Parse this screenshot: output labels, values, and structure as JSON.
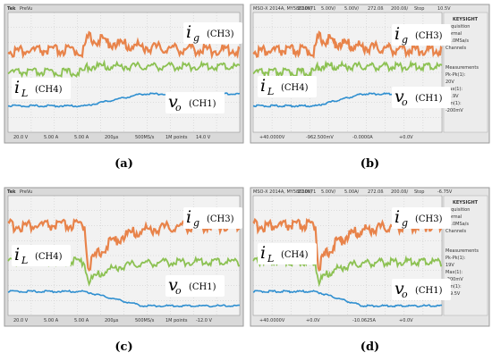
{
  "panels": [
    {
      "label": "(a)",
      "kind": "tek",
      "header": [
        "Tek",
        "PreVu"
      ],
      "footer": [
        "20.0 V",
        "5.00 A",
        "5.00 A",
        "200μs",
        "500MS/s",
        "1M points",
        "14.0 V"
      ],
      "annotations": {
        "ig": {
          "symbol": "i",
          "sub": "g",
          "channel": "(CH3)"
        },
        "iL": {
          "symbol": "i",
          "sub": "L",
          "channel": "(CH4)"
        },
        "vo": {
          "symbol": "v",
          "sub": "o",
          "channel": "(CH1)"
        }
      }
    },
    {
      "label": "(b)",
      "kind": "keysight",
      "header": [
        "MSO-X 2014A, MY58030671",
        "20.0V/",
        "5.00V/",
        "5.00V/",
        "272.0ß",
        "200.0ß/",
        "Stop",
        "10.5V"
      ],
      "sidebar": [
        "KEYSIGHT",
        "Acquisition",
        "Normal",
        "10.0MSa/s",
        "Channels",
        "Measurements",
        "Pk-Pk(1):",
        "20V",
        "Max(1):",
        "19.9V",
        "Min(1):",
        "-200mV"
      ],
      "footer": [
        "+40.0000V",
        "-962.500mV",
        "-0.0000A",
        "+0.0V"
      ],
      "annotations": {
        "ig": {
          "symbol": "i",
          "sub": "g",
          "channel": "(CH3)"
        },
        "iL": {
          "symbol": "i",
          "sub": "L",
          "channel": "(CH4)"
        },
        "vo": {
          "symbol": "v",
          "sub": "o",
          "channel": "(CH1)"
        }
      }
    },
    {
      "label": "(c)",
      "kind": "tek",
      "header": [
        "Tek",
        "PreVu"
      ],
      "footer": [
        "20.0 V",
        "5.00 A",
        "5.00 A",
        "200μs",
        "500MS/s",
        "1M points",
        "-12.0 V"
      ],
      "annotations": {
        "ig": {
          "symbol": "i",
          "sub": "g",
          "channel": "(CH3)"
        },
        "iL": {
          "symbol": "i",
          "sub": "L",
          "channel": "(CH4)"
        },
        "vo": {
          "symbol": "v",
          "sub": "o",
          "channel": "(CH1)"
        }
      }
    },
    {
      "label": "(d)",
      "kind": "keysight",
      "header": [
        "MSO-X 2014A, MY58030671",
        "20.0V/",
        "5.00V/",
        "5.00A/",
        "272.0ß",
        "200.0ß/",
        "Stop",
        "-6.75V"
      ],
      "sidebar": [
        "KEYSIGHT",
        "Acquisition",
        "Normal",
        "10.0MSa/s",
        "Channels",
        "Measurements",
        "Pk-Pk(1):",
        "19V",
        "Max(1):",
        "-200mV",
        "Min(1):",
        "-19.5V"
      ],
      "footer": [
        "+40.0000V",
        "+0.0V",
        "-10.0625A",
        "+0.0V"
      ],
      "annotations": {
        "ig": {
          "symbol": "i",
          "sub": "g",
          "channel": "(CH3)"
        },
        "iL": {
          "symbol": "i",
          "sub": "L",
          "channel": "(CH4)"
        },
        "vo": {
          "symbol": "v",
          "sub": "o",
          "channel": "(CH1)"
        }
      }
    }
  ]
}
